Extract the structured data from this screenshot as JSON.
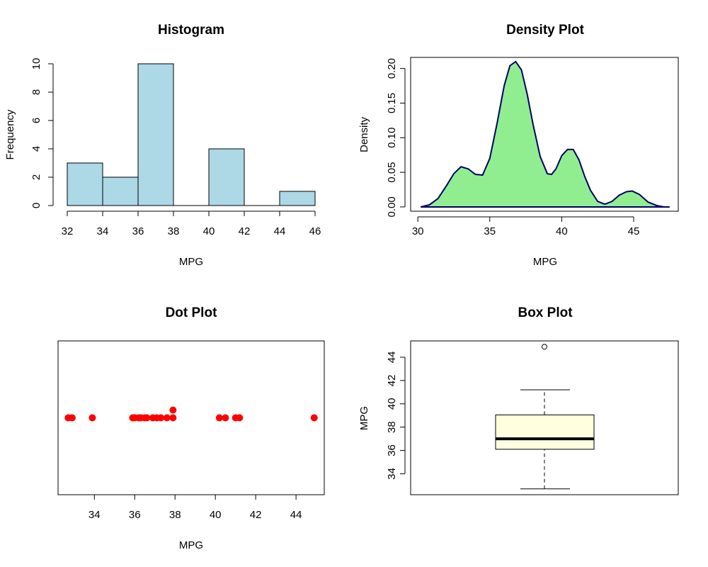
{
  "chart_data": [
    {
      "type": "histogram",
      "title": "Histogram",
      "xlabel": "MPG",
      "ylabel": "Frequency",
      "bins": [
        {
          "start": 32,
          "end": 34,
          "count": 3
        },
        {
          "start": 34,
          "end": 36,
          "count": 2
        },
        {
          "start": 36,
          "end": 38,
          "count": 10
        },
        {
          "start": 38,
          "end": 40,
          "count": 0
        },
        {
          "start": 40,
          "end": 42,
          "count": 4
        },
        {
          "start": 42,
          "end": 44,
          "count": 0
        },
        {
          "start": 44,
          "end": 46,
          "count": 1
        }
      ],
      "xticks": [
        32,
        34,
        36,
        38,
        40,
        42,
        44,
        46
      ],
      "yticks": [
        0,
        2,
        4,
        6,
        8,
        10
      ],
      "xlim": [
        32,
        46
      ],
      "ylim": [
        0,
        10
      ],
      "bar_fill": "#add8e6",
      "bar_stroke": "#000000"
    },
    {
      "type": "area",
      "title": "Density Plot",
      "xlabel": "MPG",
      "ylabel": "Density",
      "x": [
        30.2,
        30.8,
        31.4,
        32.0,
        32.5,
        33.0,
        33.5,
        34.0,
        34.5,
        35.0,
        35.5,
        36.0,
        36.4,
        36.8,
        37.2,
        37.6,
        38.0,
        38.5,
        39.0,
        39.3,
        39.6,
        40.0,
        40.4,
        40.8,
        41.2,
        41.6,
        42.0,
        42.5,
        43.0,
        43.5,
        44.0,
        44.5,
        44.9,
        45.4,
        46.0,
        46.6,
        47.1,
        47.5
      ],
      "y": [
        0.0,
        0.003,
        0.012,
        0.031,
        0.048,
        0.058,
        0.055,
        0.047,
        0.046,
        0.07,
        0.12,
        0.175,
        0.204,
        0.21,
        0.198,
        0.163,
        0.12,
        0.073,
        0.048,
        0.047,
        0.055,
        0.074,
        0.083,
        0.083,
        0.068,
        0.044,
        0.024,
        0.008,
        0.004,
        0.008,
        0.017,
        0.022,
        0.023,
        0.018,
        0.007,
        0.002,
        0.0,
        0.0
      ],
      "xticks": [
        30,
        35,
        40,
        45
      ],
      "yticks": [
        "0.00",
        "0.05",
        "0.10",
        "0.15",
        "0.20"
      ],
      "xlim": [
        29.5,
        48.1
      ],
      "ylim": [
        -0.0062,
        0.216
      ],
      "fill": "#90ee90",
      "stroke": "#000066"
    },
    {
      "type": "scatter",
      "title": "Dot Plot",
      "xlabel": "MPG",
      "points": [
        {
          "x": 32.7,
          "y": 1
        },
        {
          "x": 32.9,
          "y": 1
        },
        {
          "x": 33.9,
          "y": 1
        },
        {
          "x": 35.9,
          "y": 1
        },
        {
          "x": 36.0,
          "y": 1
        },
        {
          "x": 36.2,
          "y": 1
        },
        {
          "x": 36.3,
          "y": 1
        },
        {
          "x": 36.5,
          "y": 1
        },
        {
          "x": 36.6,
          "y": 1
        },
        {
          "x": 36.9,
          "y": 1
        },
        {
          "x": 37.1,
          "y": 1
        },
        {
          "x": 37.3,
          "y": 1
        },
        {
          "x": 37.6,
          "y": 1
        },
        {
          "x": 37.9,
          "y": 1
        },
        {
          "x": 37.9,
          "y": 1.1
        },
        {
          "x": 40.2,
          "y": 1
        },
        {
          "x": 40.5,
          "y": 1
        },
        {
          "x": 41.0,
          "y": 1
        },
        {
          "x": 41.2,
          "y": 1
        },
        {
          "x": 44.9,
          "y": 1
        }
      ],
      "xticks": [
        34,
        36,
        38,
        40,
        42,
        44
      ],
      "xlim": [
        32.2,
        45.4
      ],
      "ylim": [
        0,
        2
      ],
      "point_color": "#ff0000"
    },
    {
      "type": "box",
      "title": "Box Plot",
      "ylabel": "MPG",
      "whisker_low": 32.7,
      "q1": 36.1,
      "median": 37.0,
      "q3": 39.05,
      "whisker_high": 41.2,
      "outliers": [
        44.9
      ],
      "yticks": [
        34,
        36,
        38,
        40,
        42,
        44
      ],
      "ylim": [
        32.2,
        45.4
      ],
      "box_fill": "#ffffe0"
    }
  ]
}
